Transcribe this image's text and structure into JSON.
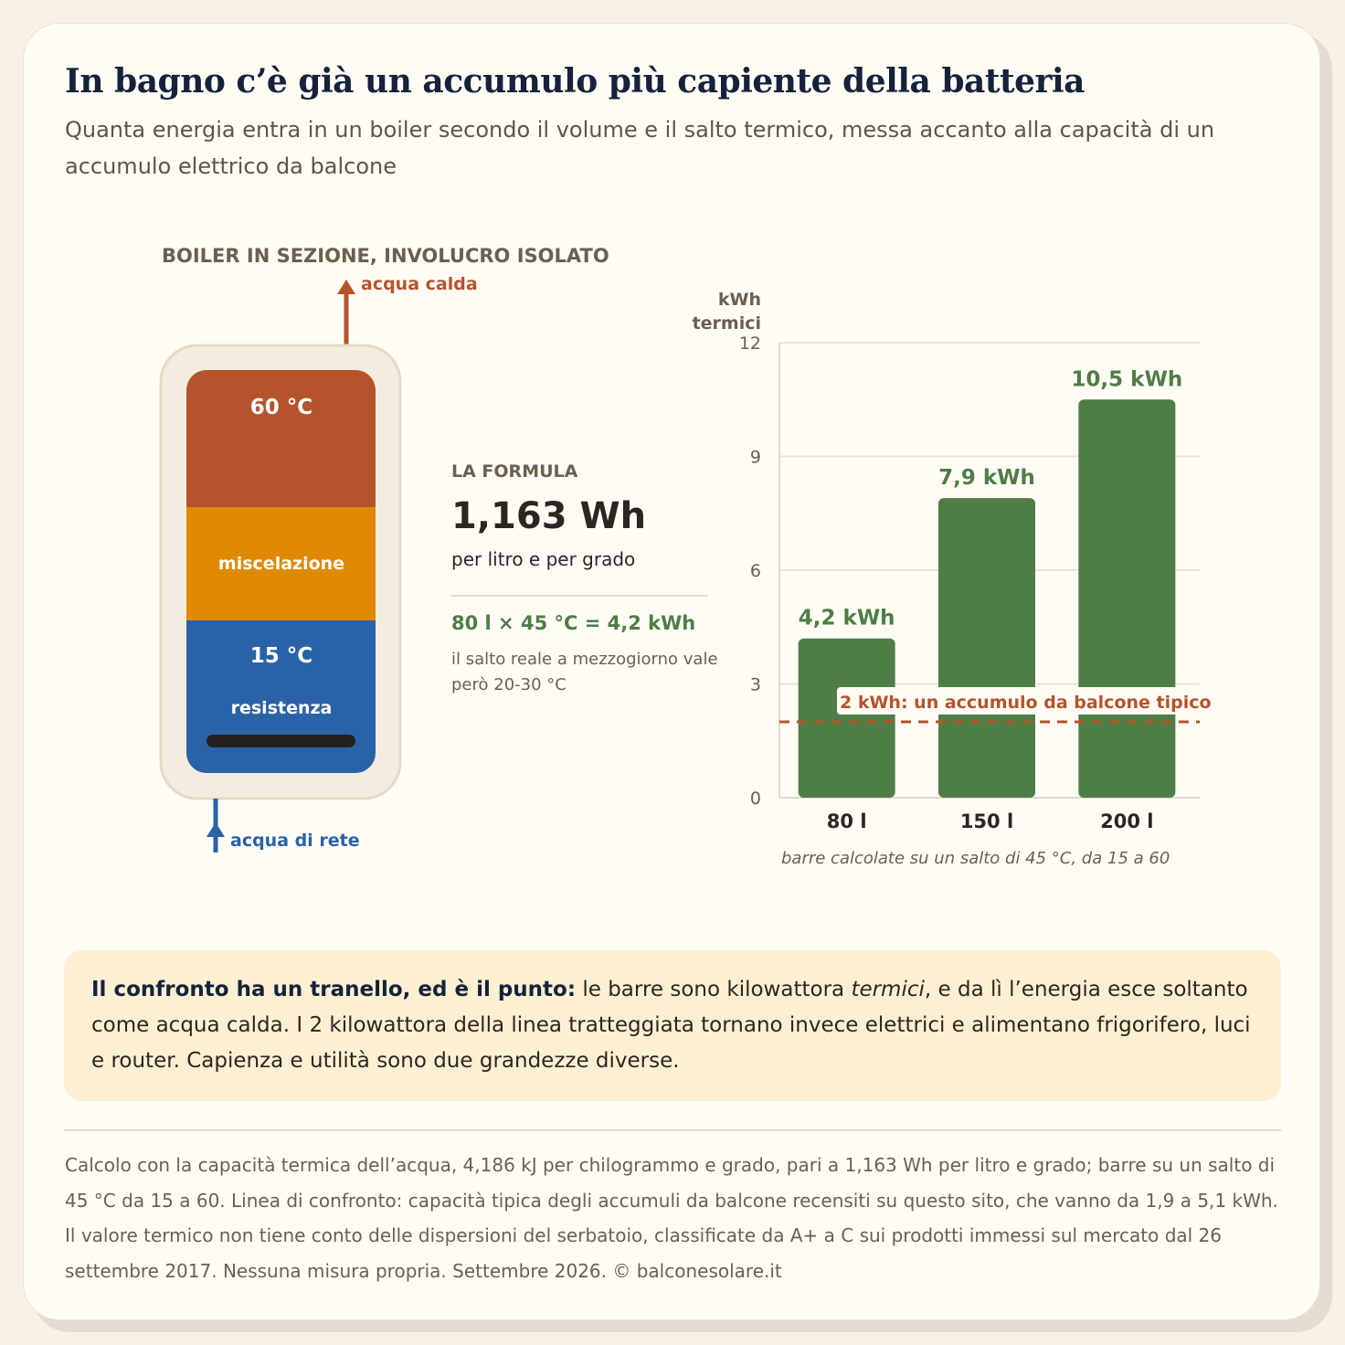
{
  "header": {
    "title": "In bagno c’è già un accumulo più capiente della batteria",
    "subtitle": "Quanta energia entra in un boiler secondo il volume e il salto termico, messa accanto alla capacità di un accumulo elettrico da balcone"
  },
  "boiler": {
    "title": "BOILER IN SEZIONE, INVOLUCRO ISOLATO",
    "hot_water_label": "acqua calda",
    "cold_water_label": "acqua di rete",
    "layers": {
      "top": "60 °C",
      "middle": "miscelazione",
      "bottom": "15 °C",
      "heater": "resistenza"
    },
    "colors": {
      "hot": "#b5532c",
      "mix": "#df8a00",
      "cold": "#2a62a8"
    }
  },
  "formula": {
    "kicker": "LA FORMULA",
    "value": "1,163 Wh",
    "unit": "per litro e per grado",
    "example": "80 l × 45 °C = 4,2 kWh",
    "note": "il salto reale a mezzogiorno vale però 20-30 °C"
  },
  "chart_data": {
    "type": "bar",
    "ylabel": "kWh termici",
    "categories": [
      "80 l",
      "150 l",
      "200 l"
    ],
    "values": [
      4.2,
      7.9,
      10.5
    ],
    "value_labels": [
      "4,2 kWh",
      "7,9 kWh",
      "10,5 kWh"
    ],
    "ylim": [
      0,
      12
    ],
    "yticks": [
      0,
      3,
      6,
      9,
      12
    ],
    "grid": true,
    "bar_color": "#4f7d47",
    "reference_line": {
      "value": 2,
      "label": "2 kWh: un accumulo da balcone tipico",
      "color": "#b5532c"
    },
    "caption": "barre calcolate su un salto di 45 °C, da 15 a 60"
  },
  "callout": {
    "lead": "Il confronto ha un tranello, ed è il punto:",
    "text_before": " le barre sono kilowattora ",
    "emphasis": "termici",
    "text_after": ", e da lì l’energia esce soltanto come acqua calda. I 2 kilowattora della linea tratteggiata tornano invece elettrici e alimentano frigorifero, luci e router. Capienza e utilità sono due grandezze diverse."
  },
  "footer": {
    "text": "Calcolo con la capacità termica dell’acqua, 4,186 kJ per chilogrammo e grado, pari a 1,163 Wh per litro e grado; barre su un salto di 45 °C da 15 a 60. Linea di confronto: capacità tipica degli accumuli da balcone recensiti su questo sito, che vanno da 1,9 a 5,1 kWh. Il valore termico non tiene conto delle dispersioni del serbatoio, classificate da A+ a C sui prodotti immessi sul mercato dal 26 settembre 2017. Nessuna misura propria. Settembre 2026. © balconesolare.it"
  }
}
